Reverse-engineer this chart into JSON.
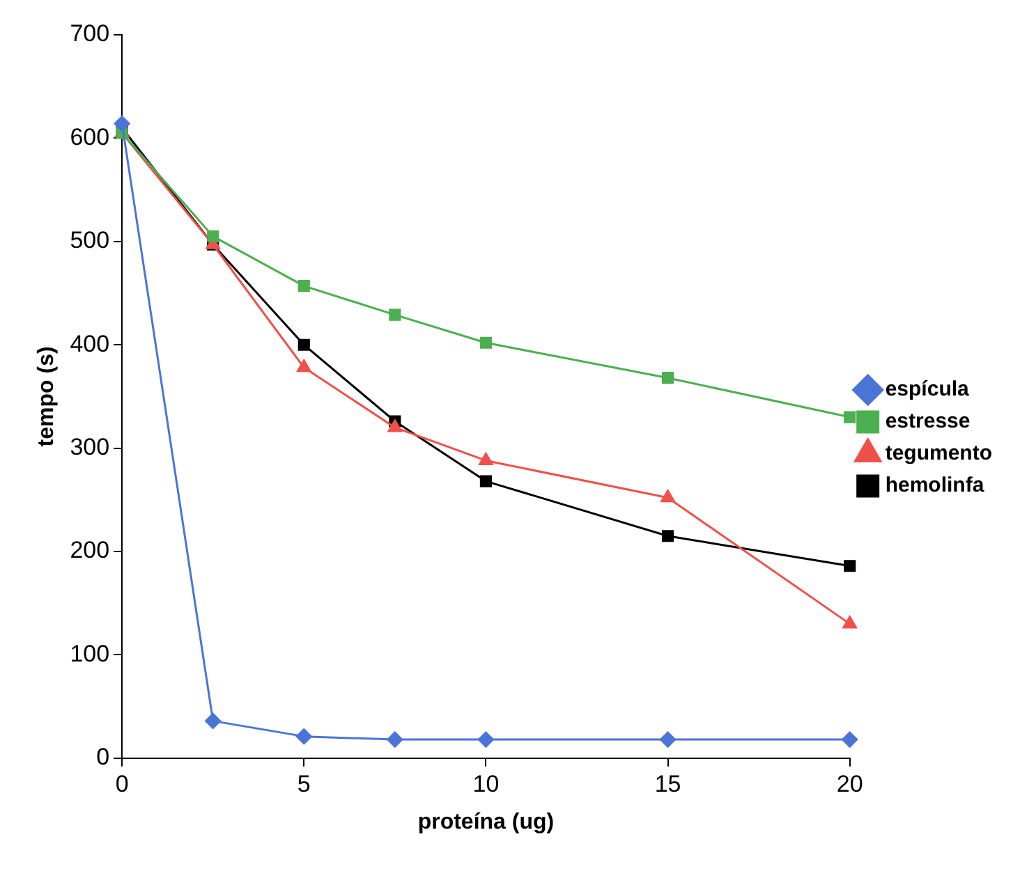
{
  "chart_data": {
    "type": "line",
    "xlabel": "proteína (ug)",
    "ylabel": "tempo (s)",
    "x": [
      0,
      2.5,
      5,
      7.5,
      10,
      15,
      20
    ],
    "xlim": [
      0,
      20
    ],
    "xticks": [
      0,
      5,
      10,
      15,
      20
    ],
    "ylim": [
      0,
      700
    ],
    "yticks": [
      0,
      100,
      200,
      300,
      400,
      500,
      600,
      700
    ],
    "grid": false,
    "legend": "right",
    "line_style": "solid",
    "series": [
      {
        "name": "espícula",
        "color": "#4a74d8",
        "marker": "diamond",
        "values": [
          614,
          36,
          21,
          18,
          18,
          18,
          18
        ]
      },
      {
        "name": "estresse",
        "color": "#4caf50",
        "marker": "square",
        "values": [
          605,
          505,
          457,
          429,
          402,
          368,
          330
        ]
      },
      {
        "name": "tegumento",
        "color": "#f0504a",
        "marker": "triangle",
        "values": [
          605,
          497,
          378,
          320,
          288,
          252,
          130
        ]
      },
      {
        "name": "hemolinfa",
        "color": "#000000",
        "marker": "square",
        "values": [
          610,
          497,
          400,
          326,
          268,
          215,
          186
        ]
      }
    ]
  }
}
